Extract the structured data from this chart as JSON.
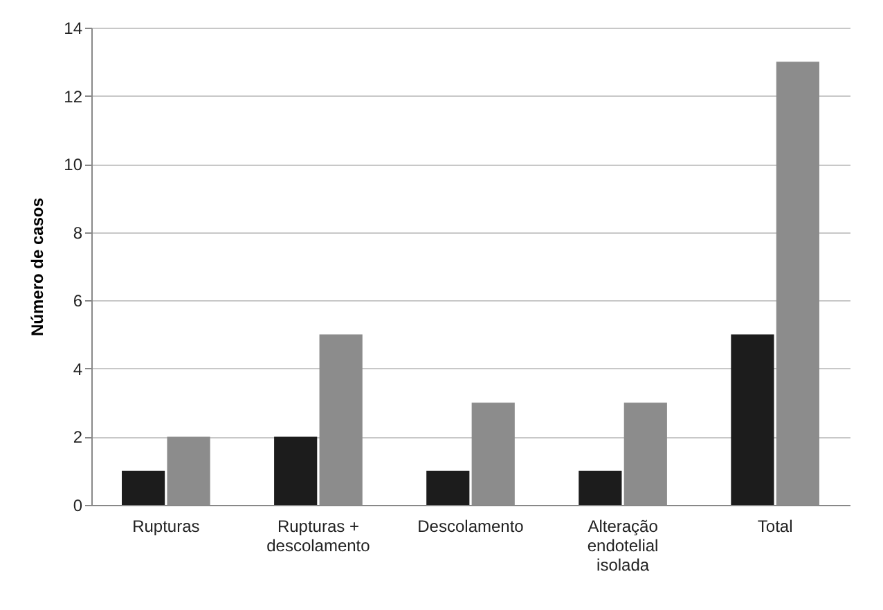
{
  "chart_data": {
    "type": "bar",
    "ylabel": "Número de casos",
    "categories": [
      "Rupturas",
      "Rupturas + descolamento",
      "Descolamento",
      "Alteração endotelial isolada",
      "Total"
    ],
    "series": [
      {
        "color": "#1c1c1c",
        "values": [
          1,
          2,
          1,
          1,
          5
        ]
      },
      {
        "color": "#8c8c8c",
        "values": [
          2,
          5,
          3,
          3,
          13
        ]
      }
    ],
    "ylim": [
      0,
      14
    ],
    "yticks": [
      0,
      2,
      4,
      6,
      8,
      10,
      12,
      14
    ],
    "grid": "y",
    "legend": false
  }
}
